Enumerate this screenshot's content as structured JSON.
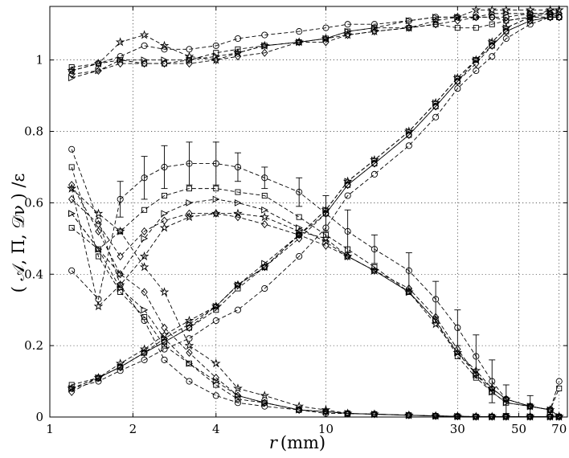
{
  "chart_data": {
    "type": "line",
    "xscale": "log",
    "xlim": [
      1,
      75
    ],
    "ylim": [
      0,
      1.15
    ],
    "grid": true,
    "xlabel_var": "r",
    "xlabel_unit": "(mm)",
    "ylabel": "( 𝒜, Π, 𝒟ν ) /ε",
    "xticks": [
      1,
      2,
      4,
      10,
      30,
      50,
      70
    ],
    "xtick_labels": [
      "1",
      "2",
      "4",
      "10",
      "30",
      "50",
      "70"
    ],
    "yticks": [
      0,
      0.2,
      0.4,
      0.6,
      0.8,
      1.0
    ],
    "ytick_labels": [
      "0",
      "0.2",
      "0.4",
      "0.6",
      "0.8",
      "1"
    ],
    "x": [
      1.2,
      1.5,
      1.8,
      2.2,
      2.6,
      3.2,
      4.0,
      4.8,
      6.0,
      8.0,
      10.0,
      12.0,
      15.0,
      20.0,
      25.0,
      30.0,
      35.0,
      40.0,
      45.0,
      55.0,
      65.0,
      70.0
    ],
    "series": [
      {
        "marker": "circle",
        "groups": [
          {
            "values": [
              0.97,
              0.99,
              1.01,
              1.04,
              1.03,
              1.03,
              1.04,
              1.06,
              1.07,
              1.08,
              1.09,
              1.1,
              1.1,
              1.11,
              1.12,
              1.12,
              1.12,
              1.12,
              1.12,
              1.13,
              1.13,
              1.12
            ]
          },
          {
            "values": [
              0.41,
              0.33,
              0.61,
              0.67,
              0.7,
              0.71,
              0.71,
              0.7,
              0.67,
              0.63,
              0.57,
              0.52,
              0.47,
              0.41,
              0.33,
              0.25,
              0.17,
              0.1,
              0.05,
              0.03,
              0.02,
              0.1
            ],
            "err": [
              0,
              0,
              0.05,
              0.06,
              0.06,
              0.06,
              0.06,
              0.04,
              0.03,
              0.04,
              0.05,
              0.06,
              0.04,
              0.05,
              0.05,
              0.05,
              0.06,
              0.06,
              0.04,
              0.03,
              0,
              0
            ]
          },
          {
            "values": [
              0.08,
              0.1,
              0.13,
              0.16,
              0.19,
              0.22,
              0.27,
              0.3,
              0.36,
              0.45,
              0.53,
              0.62,
              0.68,
              0.76,
              0.84,
              0.92,
              0.97,
              1.01,
              1.06,
              1.1,
              1.12,
              1.12
            ]
          },
          {
            "values": [
              0.75,
              0.55,
              0.37,
              0.27,
              0.16,
              0.1,
              0.06,
              0.04,
              0.03,
              0.02,
              0.01,
              0.01,
              0.008,
              0.005,
              0.003,
              0.002,
              0.001,
              0.001,
              0.001,
              0.001,
              0.001,
              0.001
            ]
          }
        ]
      },
      {
        "marker": "square",
        "groups": [
          {
            "values": [
              0.98,
              0.99,
              1.0,
              0.99,
              0.99,
              1.0,
              1.02,
              1.03,
              1.04,
              1.05,
              1.06,
              1.08,
              1.09,
              1.09,
              1.1,
              1.09,
              1.09,
              1.1,
              1.11,
              1.12,
              1.12,
              1.12
            ]
          },
          {
            "values": [
              0.53,
              0.47,
              0.52,
              0.58,
              0.62,
              0.64,
              0.64,
              0.63,
              0.62,
              0.56,
              0.51,
              0.47,
              0.42,
              0.35,
              0.27,
              0.17,
              0.11,
              0.07,
              0.04,
              0.03,
              0.02,
              0.08
            ]
          },
          {
            "values": [
              0.09,
              0.11,
              0.14,
              0.18,
              0.21,
              0.25,
              0.3,
              0.36,
              0.42,
              0.51,
              0.57,
              0.65,
              0.71,
              0.79,
              0.87,
              0.94,
              1.0,
              1.04,
              1.08,
              1.11,
              1.12,
              1.12
            ]
          },
          {
            "values": [
              0.7,
              0.45,
              0.35,
              0.28,
              0.2,
              0.15,
              0.09,
              0.05,
              0.04,
              0.02,
              0.015,
              0.01,
              0.008,
              0.005,
              0.003,
              0.002,
              0.001,
              0.001,
              0.001,
              0.001,
              0.001,
              0.001
            ]
          }
        ]
      },
      {
        "marker": "diamond",
        "groups": [
          {
            "values": [
              0.96,
              0.97,
              0.99,
              0.99,
              0.99,
              0.99,
              1.0,
              1.01,
              1.02,
              1.05,
              1.05,
              1.07,
              1.08,
              1.09,
              1.1,
              1.11,
              1.12,
              1.12,
              1.11,
              1.12,
              1.12,
              1.12
            ]
          },
          {
            "values": [
              0.61,
              0.54,
              0.45,
              0.52,
              0.55,
              0.57,
              0.57,
              0.56,
              0.54,
              0.51,
              0.48,
              0.45,
              0.41,
              0.36,
              0.28,
              0.19,
              0.12,
              0.08,
              0.05,
              0.03,
              0.02,
              0.001
            ]
          },
          {
            "values": [
              0.07,
              0.11,
              0.14,
              0.18,
              0.21,
              0.25,
              0.31,
              0.37,
              0.42,
              0.5,
              0.57,
              0.65,
              0.71,
              0.79,
              0.87,
              0.94,
              0.99,
              1.04,
              1.08,
              1.11,
              1.12,
              1.12
            ]
          },
          {
            "values": [
              0.65,
              0.52,
              0.4,
              0.35,
              0.25,
              0.18,
              0.11,
              0.06,
              0.04,
              0.02,
              0.015,
              0.01,
              0.008,
              0.005,
              0.003,
              0.002,
              0.001,
              0.001,
              0.001,
              0.001,
              0.001,
              0.001
            ]
          }
        ]
      },
      {
        "marker": "triangle-right",
        "groups": [
          {
            "values": [
              0.95,
              0.97,
              1.0,
              1.0,
              1.0,
              1.0,
              1.01,
              1.02,
              1.04,
              1.05,
              1.06,
              1.08,
              1.09,
              1.11,
              1.12,
              1.12,
              1.12,
              1.13,
              1.13,
              1.13,
              1.13,
              1.13
            ]
          },
          {
            "values": [
              0.57,
              0.47,
              0.4,
              0.5,
              0.57,
              0.6,
              0.61,
              0.6,
              0.58,
              0.53,
              0.49,
              0.45,
              0.41,
              0.35,
              0.27,
              0.18,
              0.12,
              0.07,
              0.04,
              0.03,
              0.02,
              0.001
            ]
          },
          {
            "values": [
              0.08,
              0.11,
              0.14,
              0.18,
              0.22,
              0.26,
              0.31,
              0.37,
              0.43,
              0.51,
              0.58,
              0.66,
              0.72,
              0.8,
              0.88,
              0.95,
              1.0,
              1.05,
              1.09,
              1.12,
              1.13,
              1.13
            ]
          },
          {
            "values": [
              0.57,
              0.47,
              0.36,
              0.3,
              0.22,
              0.15,
              0.1,
              0.06,
              0.04,
              0.02,
              0.015,
              0.01,
              0.008,
              0.005,
              0.003,
              0.002,
              0.001,
              0.001,
              0.001,
              0.001,
              0.001,
              0.001
            ]
          }
        ]
      },
      {
        "marker": "star",
        "groups": [
          {
            "values": [
              0.97,
              0.99,
              1.05,
              1.07,
              1.04,
              1.01,
              1.0,
              1.02,
              1.04,
              1.05,
              1.06,
              1.07,
              1.08,
              1.09,
              1.11,
              1.12,
              1.14,
              1.14,
              1.14,
              1.14,
              1.14,
              1.14
            ]
          },
          {
            "values": [
              0.64,
              0.31,
              0.37,
              0.45,
              0.53,
              0.56,
              0.57,
              0.57,
              0.56,
              0.52,
              0.5,
              0.45,
              0.41,
              0.35,
              0.26,
              0.18,
              0.13,
              0.08,
              0.05,
              0.03,
              0.02,
              0.001
            ]
          },
          {
            "values": [
              0.08,
              0.11,
              0.15,
              0.19,
              0.23,
              0.27,
              0.31,
              0.37,
              0.42,
              0.51,
              0.58,
              0.66,
              0.72,
              0.8,
              0.88,
              0.95,
              1.0,
              1.05,
              1.09,
              1.12,
              1.14,
              1.14
            ]
          },
          {
            "values": [
              0.64,
              0.57,
              0.52,
              0.42,
              0.35,
              0.2,
              0.15,
              0.08,
              0.06,
              0.03,
              0.02,
              0.01,
              0.008,
              0.005,
              0.003,
              0.002,
              0.001,
              0.001,
              0.001,
              0.001,
              0.001,
              0.001
            ]
          }
        ]
      }
    ]
  }
}
